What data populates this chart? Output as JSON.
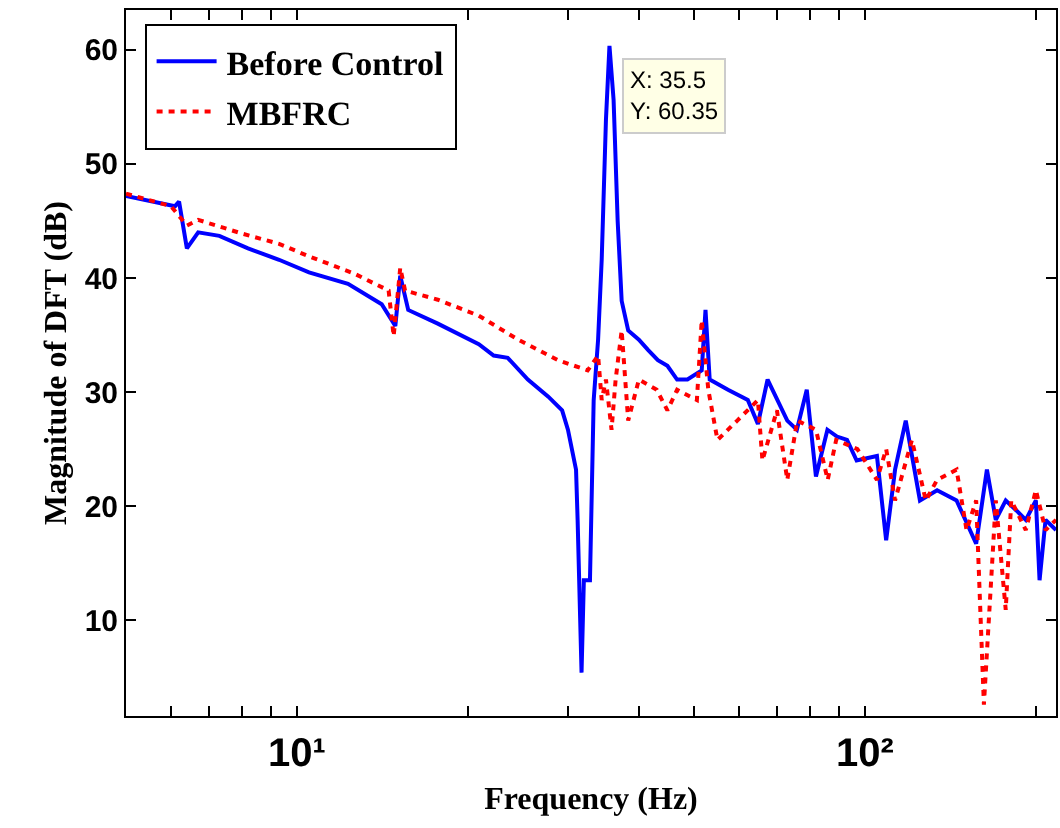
{
  "chart_data": {
    "type": "line",
    "xlabel": "Frequency (Hz)",
    "ylabel": "Magnitude of DFT (dB)",
    "log": "x",
    "xlim": [
      5,
      217
    ],
    "ylim": [
      1.6,
      63.5
    ],
    "xticks": [
      {
        "value": 6,
        "label": null
      },
      {
        "value": 7,
        "label": null
      },
      {
        "value": 8,
        "label": null
      },
      {
        "value": 9,
        "label": null
      },
      {
        "value": 10,
        "label": "10¹"
      },
      {
        "value": 20,
        "label": null
      },
      {
        "value": 30,
        "label": null
      },
      {
        "value": 40,
        "label": null
      },
      {
        "value": 50,
        "label": null
      },
      {
        "value": 60,
        "label": null
      },
      {
        "value": 70,
        "label": null
      },
      {
        "value": 80,
        "label": null
      },
      {
        "value": 90,
        "label": null
      },
      {
        "value": 100,
        "label": "10²"
      },
      {
        "value": 200,
        "label": null
      }
    ],
    "yticks": [
      10,
      20,
      30,
      40,
      50,
      60
    ],
    "grid": false,
    "legend": "top left",
    "annotations": [
      {
        "text": "X: 35.5\nY: 60.35",
        "x": 35.5,
        "y": 60.35
      }
    ],
    "series": [
      {
        "name": "Before Control",
        "color": "#0000ff",
        "line_style": "solid",
        "x": [
          5,
          6.1,
          6.2,
          6.4,
          6.7,
          7.3,
          8.2,
          9.3,
          10.5,
          12.3,
          14.1,
          14.9,
          15.2,
          15.7,
          17.7,
          20.9,
          22.2,
          23.5,
          25.5,
          27.7,
          29.3,
          30,
          31,
          31.2,
          31.7,
          32,
          32.8,
          33.3,
          33.9,
          34.4,
          35,
          35.5,
          36.1,
          36.7,
          37.3,
          38.3,
          40,
          41.5,
          43.2,
          44.9,
          46.7,
          48.7,
          51.6,
          52.4,
          53.3,
          57.4,
          62.2,
          64.8,
          67.4,
          73,
          75.9,
          79,
          82,
          85.9,
          89.3,
          93,
          96.7,
          105,
          109,
          113,
          118,
          125,
          134,
          145,
          157,
          164,
          170,
          177,
          185,
          192,
          200,
          203,
          208,
          217
        ],
        "values": [
          47.2,
          46.3,
          46.7,
          42.6,
          44,
          43.7,
          42.6,
          41.6,
          40.5,
          39.5,
          37.7,
          35.8,
          40.2,
          37.2,
          36,
          34.2,
          33.2,
          33,
          31.1,
          29.6,
          28.4,
          26.7,
          23.2,
          18.8,
          5.4,
          13.5,
          13.5,
          29.3,
          34.6,
          41.6,
          53.9,
          60.35,
          55.6,
          45,
          38,
          35.4,
          34.6,
          33.7,
          32.8,
          32.3,
          31.1,
          31.1,
          31.9,
          37.2,
          31.1,
          30.2,
          29.3,
          27.2,
          31.1,
          27.5,
          26.7,
          30.2,
          22.6,
          26.7,
          26.1,
          25.8,
          24,
          24.4,
          17,
          23.2,
          27.5,
          20.5,
          21.4,
          20.5,
          16.7,
          23.2,
          18.8,
          20.5,
          19.6,
          18.8,
          20.5,
          13.5,
          18.8,
          17.9
        ]
      },
      {
        "name": "MBFRC",
        "color": "#ff0000",
        "line_style": "dotted",
        "x": [
          5,
          6,
          6.4,
          6.7,
          8,
          9.3,
          10.5,
          12.6,
          14.5,
          14.8,
          15.2,
          15.5,
          17.7,
          20.9,
          24.5,
          28.8,
          32.5,
          33.9,
          34.4,
          35,
          35.8,
          36.4,
          37.3,
          38.3,
          40,
          43,
          44.9,
          46.7,
          50.6,
          51.6,
          53,
          55,
          59.6,
          64.8,
          66,
          70,
          73,
          76,
          82,
          86,
          89,
          97,
          105,
          109,
          113,
          121,
          128,
          134,
          145,
          151,
          157,
          162,
          170,
          177,
          181,
          192,
          200,
          208,
          217
        ],
        "values": [
          47.4,
          46.3,
          44.6,
          45.1,
          43.9,
          43,
          41.9,
          40.4,
          38.9,
          34.9,
          40.9,
          38.9,
          38.1,
          36.7,
          34.6,
          32.8,
          31.9,
          33.2,
          29.3,
          31.1,
          26.7,
          31.1,
          35.4,
          27.5,
          31.1,
          30.2,
          28.4,
          30.2,
          29.3,
          36.3,
          30.2,
          25.8,
          27.5,
          29.3,
          24,
          28.4,
          22.3,
          27.5,
          26.7,
          22.3,
          25.8,
          25,
          22.3,
          25,
          20.5,
          25.8,
          20.5,
          22.3,
          23.2,
          17.9,
          20.5,
          2.6,
          20.5,
          10.9,
          20.5,
          17.9,
          21.4,
          17.9,
          18.8
        ]
      }
    ]
  }
}
